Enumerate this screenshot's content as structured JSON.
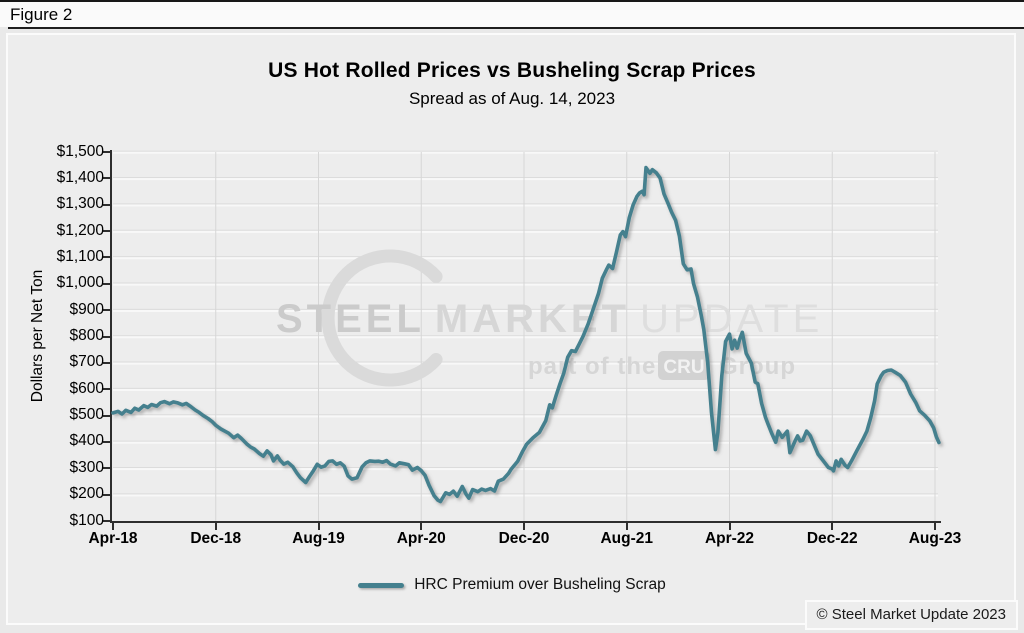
{
  "window": {
    "figure_label": "Figure 2"
  },
  "watermark": {
    "word1": "STEEL",
    "word2": "MARKET",
    "word3": "UPDATE",
    "tagline_prefix": "part of the",
    "tagline_box": "CRU",
    "tagline_suffix": "Group"
  },
  "footer": {
    "copyright": "© Steel Market Update 2023"
  },
  "chart_data": {
    "type": "line",
    "title": "US Hot Rolled Prices vs Busheling Scrap Prices",
    "subtitle": "Spread as of Aug. 14, 2023",
    "ylabel": "Dollars per Net Ton",
    "ylim": [
      100,
      1500
    ],
    "ytick_step": 100,
    "ytick_labels": [
      "$100",
      "$200",
      "$300",
      "$400",
      "$500",
      "$600",
      "$700",
      "$800",
      "$900",
      "$1,000",
      "$1,100",
      "$1,200",
      "$1,300",
      "$1,400",
      "$1,500"
    ],
    "xtick_labels": [
      "Apr-18",
      "Dec-18",
      "Aug-19",
      "Apr-20",
      "Dec-20",
      "Aug-21",
      "Apr-22",
      "Dec-22",
      "Aug-23"
    ],
    "xtick_months": [
      0,
      8,
      16,
      24,
      32,
      40,
      48,
      56,
      64
    ],
    "xlim": [
      0,
      64
    ],
    "x_unit": "months-since-Apr-2018",
    "grid": true,
    "legend_position": "bottom",
    "legend": [
      {
        "label": "HRC Premium over Busheling Scrap",
        "color": "#44808E"
      }
    ],
    "series": [
      {
        "name": "HRC Premium over Busheling Scrap",
        "color": "#44808E",
        "points": [
          [
            0,
            510
          ],
          [
            0.4,
            516
          ],
          [
            0.7,
            506
          ],
          [
            1,
            520
          ],
          [
            1.4,
            512
          ],
          [
            1.7,
            528
          ],
          [
            2,
            521
          ],
          [
            2.4,
            538
          ],
          [
            2.7,
            531
          ],
          [
            3,
            542
          ],
          [
            3.4,
            536
          ],
          [
            3.7,
            549
          ],
          [
            4,
            553
          ],
          [
            4.4,
            545
          ],
          [
            4.7,
            552
          ],
          [
            5,
            549
          ],
          [
            5.4,
            541
          ],
          [
            5.7,
            546
          ],
          [
            6,
            536
          ],
          [
            6.4,
            521
          ],
          [
            6.7,
            512
          ],
          [
            7,
            501
          ],
          [
            7.4,
            489
          ],
          [
            7.7,
            478
          ],
          [
            8,
            463
          ],
          [
            8.4,
            449
          ],
          [
            8.7,
            441
          ],
          [
            9,
            433
          ],
          [
            9.4,
            416
          ],
          [
            9.7,
            426
          ],
          [
            10,
            413
          ],
          [
            10.4,
            393
          ],
          [
            10.7,
            381
          ],
          [
            11,
            373
          ],
          [
            11.4,
            356
          ],
          [
            11.7,
            346
          ],
          [
            12,
            366
          ],
          [
            12.3,
            351
          ],
          [
            12.5,
            328
          ],
          [
            12.8,
            347
          ],
          [
            13,
            331
          ],
          [
            13.3,
            316
          ],
          [
            13.6,
            323
          ],
          [
            14,
            306
          ],
          [
            14.3,
            283
          ],
          [
            14.6,
            264
          ],
          [
            15,
            246
          ],
          [
            15.3,
            269
          ],
          [
            15.6,
            291
          ],
          [
            15.9,
            315
          ],
          [
            16.2,
            304
          ],
          [
            16.5,
            309
          ],
          [
            16.8,
            326
          ],
          [
            17.1,
            328
          ],
          [
            17.4,
            315
          ],
          [
            17.7,
            321
          ],
          [
            18,
            308
          ],
          [
            18.3,
            271
          ],
          [
            18.6,
            259
          ],
          [
            19,
            264
          ],
          [
            19.4,
            306
          ],
          [
            19.7,
            321
          ],
          [
            20,
            328
          ],
          [
            20.4,
            326
          ],
          [
            20.7,
            327
          ],
          [
            21,
            323
          ],
          [
            21.3,
            329
          ],
          [
            21.6,
            316
          ],
          [
            22,
            309
          ],
          [
            22.3,
            321
          ],
          [
            22.7,
            317
          ],
          [
            23,
            314
          ],
          [
            23.3,
            293
          ],
          [
            23.7,
            303
          ],
          [
            24,
            291
          ],
          [
            24.3,
            273
          ],
          [
            24.6,
            236
          ],
          [
            25,
            196
          ],
          [
            25.3,
            179
          ],
          [
            25.5,
            174
          ],
          [
            25.9,
            207
          ],
          [
            26.2,
            201
          ],
          [
            26.5,
            213
          ],
          [
            26.8,
            194
          ],
          [
            27.2,
            231
          ],
          [
            27.5,
            201
          ],
          [
            27.7,
            187
          ],
          [
            28,
            219
          ],
          [
            28.4,
            211
          ],
          [
            28.7,
            221
          ],
          [
            29,
            216
          ],
          [
            29.4,
            223
          ],
          [
            29.7,
            214
          ],
          [
            30,
            251
          ],
          [
            30.4,
            259
          ],
          [
            30.8,
            281
          ],
          [
            31,
            297
          ],
          [
            31.5,
            326
          ],
          [
            31.9,
            365
          ],
          [
            32.2,
            391
          ],
          [
            32.7,
            416
          ],
          [
            33.2,
            436
          ],
          [
            33.7,
            481
          ],
          [
            34,
            541
          ],
          [
            34.2,
            529
          ],
          [
            34.5,
            576
          ],
          [
            34.8,
            621
          ],
          [
            35.1,
            661
          ],
          [
            35.4,
            721
          ],
          [
            35.7,
            746
          ],
          [
            36,
            743
          ],
          [
            36.3,
            771
          ],
          [
            36.6,
            801
          ],
          [
            37,
            848
          ],
          [
            37.4,
            906
          ],
          [
            37.8,
            963
          ],
          [
            38.1,
            1021
          ],
          [
            38.4,
            1052
          ],
          [
            38.6,
            1071
          ],
          [
            38.9,
            1058
          ],
          [
            39.2,
            1121
          ],
          [
            39.5,
            1185
          ],
          [
            39.7,
            1198
          ],
          [
            39.9,
            1179
          ],
          [
            40.2,
            1251
          ],
          [
            40.5,
            1300
          ],
          [
            40.8,
            1332
          ],
          [
            41,
            1345
          ],
          [
            41.2,
            1351
          ],
          [
            41.35,
            1338
          ],
          [
            41.5,
            1441
          ],
          [
            41.8,
            1419
          ],
          [
            42,
            1433
          ],
          [
            42.3,
            1421
          ],
          [
            42.6,
            1401
          ],
          [
            42.9,
            1341
          ],
          [
            43.2,
            1306
          ],
          [
            43.5,
            1271
          ],
          [
            43.8,
            1241
          ],
          [
            44.1,
            1181
          ],
          [
            44.4,
            1076
          ],
          [
            44.7,
            1053
          ],
          [
            45,
            1056
          ],
          [
            45.2,
            1001
          ],
          [
            45.5,
            951
          ],
          [
            45.8,
            881
          ],
          [
            46,
            826
          ],
          [
            46.3,
            701
          ],
          [
            46.6,
            511
          ],
          [
            46.9,
            371
          ],
          [
            47.1,
            436
          ],
          [
            47.4,
            651
          ],
          [
            47.7,
            781
          ],
          [
            48,
            809
          ],
          [
            48.2,
            753
          ],
          [
            48.4,
            786
          ],
          [
            48.6,
            756
          ],
          [
            48.8,
            791
          ],
          [
            49,
            816
          ],
          [
            49.3,
            736
          ],
          [
            49.7,
            699
          ],
          [
            50,
            627
          ],
          [
            50.2,
            621
          ],
          [
            50.5,
            546
          ],
          [
            50.8,
            493
          ],
          [
            51,
            468
          ],
          [
            51.3,
            431
          ],
          [
            51.6,
            399
          ],
          [
            51.8,
            441
          ],
          [
            52.1,
            417
          ],
          [
            52.5,
            441
          ],
          [
            52.7,
            359
          ],
          [
            53.1,
            403
          ],
          [
            53.3,
            423
          ],
          [
            53.5,
            404
          ],
          [
            53.7,
            406
          ],
          [
            54,
            441
          ],
          [
            54.3,
            423
          ],
          [
            54.5,
            399
          ],
          [
            54.9,
            353
          ],
          [
            55.3,
            328
          ],
          [
            55.7,
            303
          ],
          [
            56,
            297
          ],
          [
            56.1,
            290
          ],
          [
            56.3,
            328
          ],
          [
            56.5,
            309
          ],
          [
            56.7,
            334
          ],
          [
            57,
            311
          ],
          [
            57.2,
            303
          ],
          [
            57.5,
            328
          ],
          [
            57.9,
            366
          ],
          [
            58.4,
            411
          ],
          [
            58.7,
            441
          ],
          [
            59,
            493
          ],
          [
            59.3,
            556
          ],
          [
            59.5,
            620
          ],
          [
            59.8,
            651
          ],
          [
            60,
            664
          ],
          [
            60.3,
            671
          ],
          [
            60.6,
            673
          ],
          [
            60.9,
            664
          ],
          [
            61.3,
            652
          ],
          [
            61.7,
            627
          ],
          [
            62.1,
            582
          ],
          [
            62.5,
            550
          ],
          [
            62.8,
            518
          ],
          [
            63.2,
            501
          ],
          [
            63.6,
            479
          ],
          [
            63.9,
            453
          ],
          [
            64.1,
            420
          ],
          [
            64.3,
            398
          ]
        ]
      }
    ]
  }
}
